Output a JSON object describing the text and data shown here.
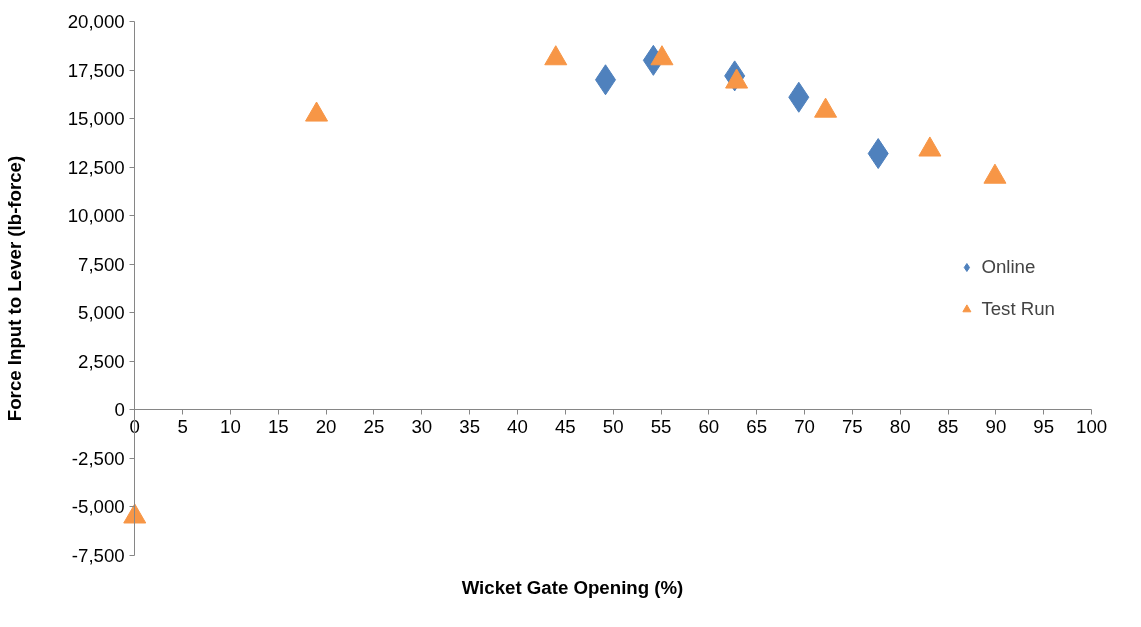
{
  "chart_data": {
    "type": "scatter",
    "xlabel": "Wicket Gate Opening (%)",
    "ylabel": "Force Input to Lever (lb-force)",
    "xlim": [
      0,
      100
    ],
    "xticks": [
      0,
      5,
      10,
      15,
      20,
      25,
      30,
      35,
      40,
      45,
      50,
      55,
      60,
      65,
      70,
      75,
      80,
      85,
      90,
      95,
      100
    ],
    "ylim": [
      -7500,
      20000
    ],
    "yticks": [
      {
        "value": -7500,
        "label": "-7,500"
      },
      {
        "value": -5000,
        "label": "-5,000"
      },
      {
        "value": -2500,
        "label": "-2,500"
      },
      {
        "value": 0,
        "label": "0"
      },
      {
        "value": 2500,
        "label": "2,500"
      },
      {
        "value": 5000,
        "label": "5,000"
      },
      {
        "value": 7500,
        "label": "7,500"
      },
      {
        "value": 10000,
        "label": "10,000"
      },
      {
        "value": 12500,
        "label": "12,500"
      },
      {
        "value": 15000,
        "label": "15,000"
      },
      {
        "value": 17500,
        "label": "17,500"
      },
      {
        "value": 20000,
        "label": "20,000"
      }
    ],
    "grid": false,
    "legend": "right",
    "series": [
      {
        "name": "Online",
        "color": "#4f81bd",
        "marker": "diamond",
        "x": [
          49.2,
          54.2,
          62.7,
          69.4,
          77.7
        ],
        "values": [
          17000,
          18000,
          17200,
          16100,
          13200
        ]
      },
      {
        "name": "Test Run",
        "color": "#f79646",
        "marker": "triangle",
        "x": [
          0,
          19,
          44,
          55.1,
          62.9,
          72.2,
          83.1,
          89.9
        ],
        "values": [
          -5500,
          15200,
          18100,
          18100,
          16900,
          15400,
          13400,
          12000
        ]
      }
    ]
  }
}
